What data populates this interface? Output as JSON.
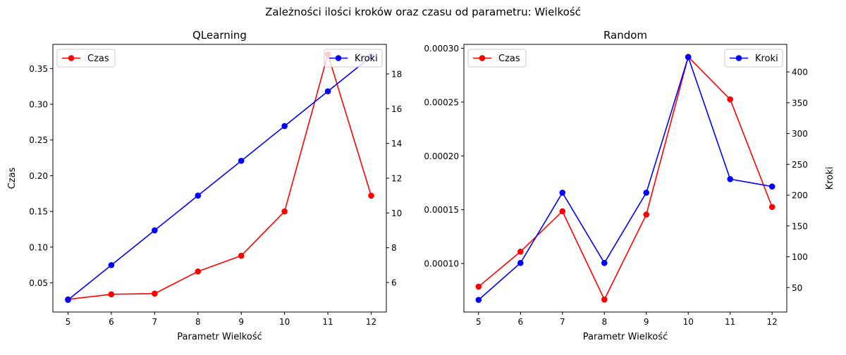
{
  "figure": {
    "suptitle": "Zależności ilości kroków oraz czasu od parametru: Wielkość"
  },
  "chart_data": [
    {
      "type": "line",
      "title": "QLearning",
      "xlabel": "Parametr Wielkość",
      "ylabel_left": "Czas",
      "ylabel_right": "",
      "x": [
        5,
        6,
        7,
        8,
        9,
        10,
        11,
        12
      ],
      "xlim": [
        4.65,
        12.35
      ],
      "ylim_left": [
        0.0092,
        0.3838
      ],
      "ylim_right": [
        4.3,
        19.7
      ],
      "yticks_left": [
        0.05,
        0.1,
        0.15,
        0.2,
        0.25,
        0.3,
        0.35
      ],
      "yticks_left_labels": [
        "0.05",
        "0.10",
        "0.15",
        "0.20",
        "0.25",
        "0.30",
        "0.35"
      ],
      "yticks_right": [
        6,
        8,
        10,
        12,
        14,
        16,
        18
      ],
      "yticks_right_labels": [
        "6",
        "8",
        "10",
        "12",
        "14",
        "16",
        "18"
      ],
      "series": [
        {
          "name": "Czas",
          "axis": "left",
          "color": "#ff0000",
          "values": [
            0.027,
            0.034,
            0.035,
            0.066,
            0.088,
            0.15,
            0.37,
            0.172
          ],
          "legend": "top-left"
        },
        {
          "name": "Kroki",
          "axis": "right",
          "color": "#0000ff",
          "values": [
            5,
            7,
            9,
            11,
            13,
            15,
            17,
            19
          ],
          "legend": "top-right"
        }
      ]
    },
    {
      "type": "line",
      "title": "Random",
      "xlabel": "Parametr Wielkość",
      "ylabel_left": "",
      "ylabel_right": "Kroki",
      "x": [
        5,
        6,
        7,
        8,
        9,
        10,
        11,
        12
      ],
      "xlim": [
        4.65,
        12.35
      ],
      "ylim_left": [
        5.49e-05,
        0.0003036
      ],
      "ylim_right": [
        10.3,
        444.7
      ],
      "yticks_left": [
        0.0001,
        0.00015,
        0.0002,
        0.00025,
        0.0003
      ],
      "yticks_left_labels": [
        "0.00010",
        "0.00015",
        "0.00020",
        "0.00025",
        "0.00030"
      ],
      "yticks_right": [
        50,
        100,
        150,
        200,
        250,
        300,
        350,
        400
      ],
      "yticks_right_labels": [
        "50",
        "100",
        "150",
        "200",
        "250",
        "300",
        "350",
        "400"
      ],
      "series": [
        {
          "name": "Czas",
          "axis": "left",
          "color": "#ff0000",
          "values": [
            7.85e-05,
            0.000111,
            0.0001485,
            6.65e-05,
            0.0001455,
            0.000292,
            0.0002525,
            0.0001525
          ],
          "legend": "top-left"
        },
        {
          "name": "Kroki",
          "axis": "right",
          "color": "#0000ff",
          "values": [
            30,
            90,
            204,
            90,
            204,
            424,
            226,
            214
          ],
          "legend": "top-right"
        }
      ]
    }
  ]
}
